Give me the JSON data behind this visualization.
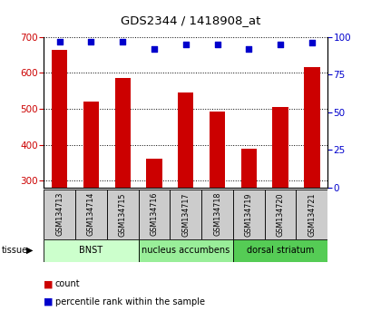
{
  "title": "GDS2344 / 1418908_at",
  "samples": [
    "GSM134713",
    "GSM134714",
    "GSM134715",
    "GSM134716",
    "GSM134717",
    "GSM134718",
    "GSM134719",
    "GSM134720",
    "GSM134721"
  ],
  "counts": [
    665,
    520,
    585,
    362,
    545,
    492,
    390,
    505,
    615
  ],
  "percentiles": [
    97,
    97,
    97,
    92,
    95,
    95,
    92,
    95,
    96
  ],
  "ylim_left": [
    280,
    700
  ],
  "ylim_right": [
    0,
    100
  ],
  "yticks_left": [
    300,
    400,
    500,
    600,
    700
  ],
  "yticks_right": [
    0,
    25,
    50,
    75,
    100
  ],
  "bar_color": "#cc0000",
  "dot_color": "#0000cc",
  "tissue_groups": [
    {
      "label": "BNST",
      "start": 0,
      "end": 2,
      "color": "#ccffcc"
    },
    {
      "label": "nucleus accumbens",
      "start": 3,
      "end": 5,
      "color": "#99ee99"
    },
    {
      "label": "dorsal striatum",
      "start": 6,
      "end": 8,
      "color": "#55cc55"
    }
  ],
  "tissue_label": "tissue",
  "legend_count_label": "count",
  "legend_pct_label": "percentile rank within the sample",
  "sample_box_color": "#cccccc"
}
